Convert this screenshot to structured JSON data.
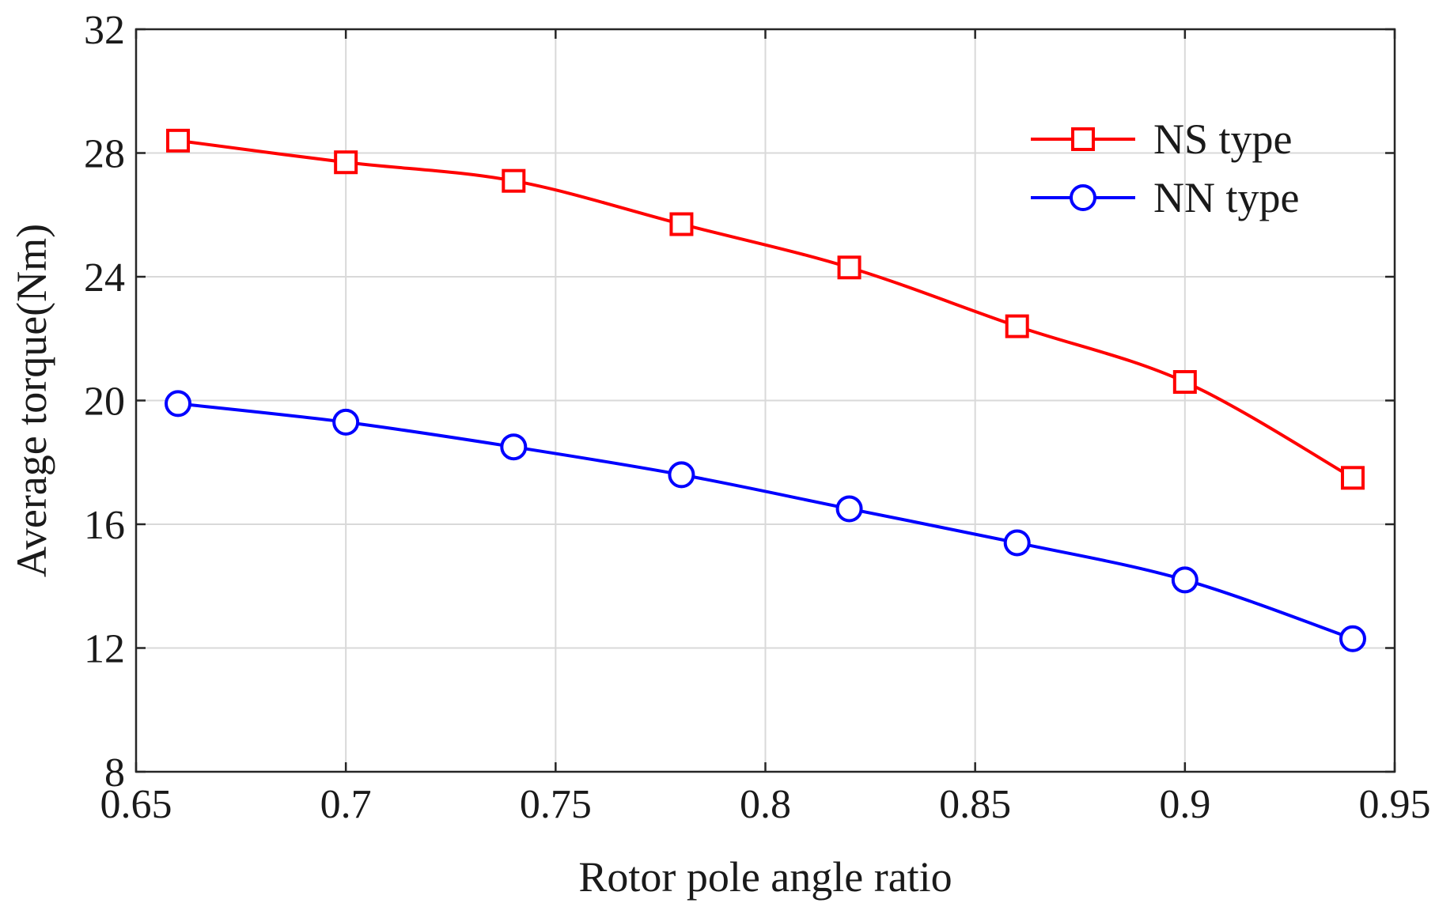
{
  "chart_data": {
    "type": "line",
    "title": "",
    "xlabel": "Rotor pole angle ratio",
    "ylabel": "Average torque(Nm)",
    "xlim": [
      0.65,
      0.95
    ],
    "ylim": [
      8,
      32
    ],
    "grid": true,
    "x_ticks": [
      0.65,
      0.7,
      0.75,
      0.8,
      0.85,
      0.9,
      0.95
    ],
    "x_tick_labels": [
      "0.65",
      "0.7",
      "0.75",
      "0.8",
      "0.85",
      "0.9",
      "0.95"
    ],
    "y_ticks": [
      8,
      12,
      16,
      20,
      24,
      28,
      32
    ],
    "y_tick_labels": [
      "8",
      "12",
      "16",
      "20",
      "24",
      "28",
      "32"
    ],
    "legend_position": "top-right",
    "x": [
      0.66,
      0.7,
      0.74,
      0.78,
      0.82,
      0.86,
      0.9,
      0.94
    ],
    "series": [
      {
        "name": "NS type",
        "color": "#ff0000",
        "marker": "square",
        "values": [
          28.4,
          27.7,
          27.1,
          25.7,
          24.3,
          22.4,
          20.6,
          17.5
        ]
      },
      {
        "name": "NN type",
        "color": "#0000ff",
        "marker": "circle",
        "values": [
          19.9,
          19.3,
          18.5,
          17.6,
          16.5,
          15.4,
          14.2,
          12.3
        ]
      }
    ]
  }
}
